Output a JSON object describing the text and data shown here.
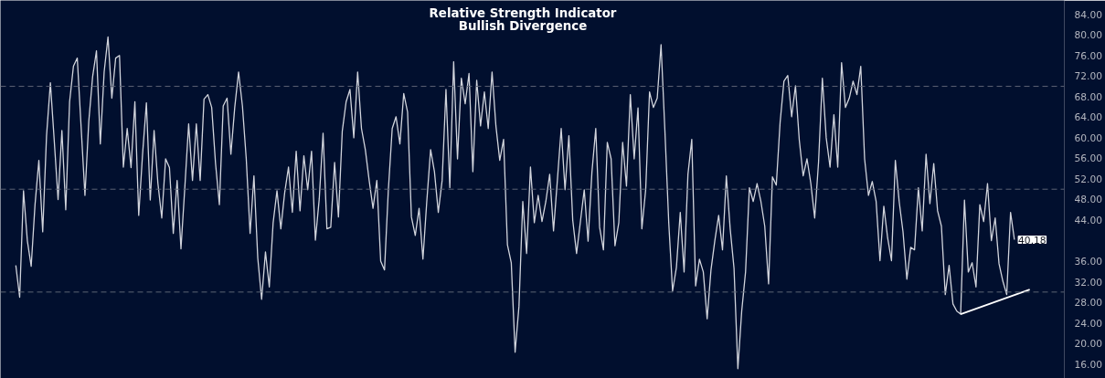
{
  "chart_data": {
    "type": "line",
    "title": "Relative Strength Indicator",
    "subtitle": "Bullish Divergence",
    "categories": [
      null,
      null,
      null,
      null,
      null,
      null,
      null,
      null,
      null,
      null,
      null,
      null,
      null,
      null,
      null,
      null,
      null,
      null,
      null,
      null,
      null,
      null,
      null,
      null,
      null,
      null,
      null,
      null,
      null,
      null,
      null,
      null,
      null,
      null,
      null,
      null,
      null,
      null,
      null,
      null,
      null,
      null,
      null,
      null,
      null,
      null,
      null,
      null,
      null,
      null,
      null,
      null,
      null,
      null,
      null,
      null,
      null,
      null,
      null,
      null,
      null,
      null,
      null,
      null,
      null,
      null,
      null,
      null,
      null,
      null,
      null,
      null,
      null,
      null,
      null,
      null,
      null,
      null,
      null,
      null,
      null,
      null,
      null,
      null,
      null,
      null,
      null,
      null,
      null,
      null,
      null,
      null,
      null,
      null,
      null,
      null,
      null,
      null,
      null,
      null,
      null,
      null,
      null,
      null,
      null,
      null,
      null,
      null,
      null,
      null,
      null,
      null,
      null,
      null,
      null,
      null,
      null,
      null,
      null,
      null,
      null,
      null,
      null,
      null,
      null,
      null,
      null,
      null,
      null,
      null,
      null,
      null,
      null,
      null,
      null,
      null,
      null,
      null,
      null,
      null,
      null,
      null,
      null,
      null,
      null,
      null,
      null,
      null,
      null,
      null,
      null,
      null,
      null,
      null,
      null,
      null,
      null,
      null,
      null,
      null,
      null,
      null,
      null,
      null,
      null,
      null,
      null,
      null,
      null,
      null,
      null,
      null,
      null,
      null,
      null,
      null,
      null,
      null,
      null,
      null,
      null,
      null,
      null,
      null,
      null,
      null,
      null,
      null,
      null,
      null,
      null,
      null,
      null,
      null,
      null,
      null,
      null,
      null,
      null,
      null,
      null,
      null,
      null,
      null,
      null,
      null,
      null,
      null,
      null,
      null,
      null,
      null,
      null,
      null,
      null,
      null,
      null,
      null,
      null,
      null,
      null,
      null,
      null,
      null,
      null,
      null,
      null,
      null,
      null,
      null,
      null,
      null,
      null,
      null,
      null,
      null,
      null,
      null,
      null,
      null,
      null,
      null,
      null,
      null,
      null,
      null,
      null,
      null,
      null,
      null,
      null,
      null,
      null,
      null,
      null,
      null,
      null,
      null,
      null,
      null,
      null,
      null,
      null,
      null,
      null
    ],
    "series": [
      {
        "color": "#d1d4dc",
        "values": [
          35.2,
          29,
          49.7,
          40,
          35,
          47,
          55.6,
          41.7,
          60.4,
          70.7,
          59.5,
          48,
          61.4,
          46,
          67,
          73.9,
          75.5,
          62.1,
          48.8,
          63.2,
          71.9,
          76.9,
          58.8,
          72.8,
          79.6,
          67.7,
          75.5,
          76,
          54.3,
          61.8,
          54.2,
          67,
          44.9,
          56.8,
          66.8,
          47.9,
          61.4,
          51.1,
          44.4,
          55.9,
          54.2,
          41.4,
          51.7,
          38.4,
          50.3,
          62.7,
          51.7,
          62.7,
          51.7,
          67.5,
          68.4,
          65.9,
          55,
          47,
          66.2,
          67.7,
          56.8,
          65.9,
          72.8,
          66.2,
          55.9,
          41.4,
          52.6,
          36.6,
          28.6,
          37.8,
          31,
          43.5,
          49.7,
          42.3,
          49.3,
          54.3,
          45.5,
          57.4,
          45.8,
          56.5,
          49.9,
          57.4,
          40.1,
          48.1,
          60.9,
          42.3,
          42.6,
          55.2,
          44.6,
          61.3,
          67,
          69.4,
          60,
          72.8,
          61.8,
          57.7,
          51.7,
          46.3,
          51.7,
          36,
          34.3,
          49.9,
          61.8,
          64.1,
          58.8,
          68.6,
          65,
          44.6,
          41,
          46.3,
          36.4,
          47.6,
          57.7,
          53.4,
          45.5,
          51.7,
          69.4,
          50.3,
          74.8,
          55.9,
          71.6,
          66.6,
          72.5,
          53.4,
          71.2,
          62.3,
          68.9,
          61.8,
          72.8,
          62.3,
          55.6,
          59.7,
          39.2,
          35.7,
          18.3,
          27.2,
          47.6,
          37.5,
          54.3,
          43.5,
          48.8,
          43.7,
          47.6,
          52.9,
          41.9,
          51.7,
          61.8,
          49.9,
          60.4,
          44,
          37.5,
          43.7,
          49.9,
          39.9,
          53.3,
          61.8,
          42.6,
          38.2,
          59.1,
          55.9,
          39,
          43.5,
          59.1,
          50.6,
          68.4,
          55.9,
          65.8,
          42.3,
          49.9,
          68.9,
          65.9,
          67.7,
          78.1,
          61.4,
          43.5,
          30.2,
          34.8,
          45.5,
          33.9,
          52.9,
          59.7,
          31.2,
          36.4,
          33.9,
          24.8,
          34.3,
          40,
          44.9,
          38.2,
          52.6,
          42.3,
          34.6,
          15.1,
          26.3,
          33.9,
          50.3,
          47.6,
          51.1,
          47.6,
          42.8,
          31.6,
          52.4,
          50.8,
          63,
          71,
          72.1,
          64.1,
          70.1,
          59.5,
          52.6,
          55.9,
          51.1,
          44.4,
          55.2,
          71.6,
          60,
          54.3,
          64.5,
          54.3,
          74.6,
          65.9,
          67.7,
          71,
          68.4,
          73.9,
          55.9,
          48.8,
          51.5,
          47.6,
          36.1,
          46.7,
          40.5,
          36.1,
          55.6,
          47.6,
          41.7,
          32.5,
          38.7,
          38.2,
          50.3,
          41.9,
          56.8,
          47.2,
          55,
          45.8,
          42.8,
          29.5,
          35.2,
          27.7,
          26.3,
          25.7,
          47.9,
          33.9,
          35.7,
          31,
          47,
          43.7,
          51.1,
          40,
          44.4,
          35.5,
          32.1,
          29.5,
          45.5,
          40.18,
          null,
          null,
          null,
          null
        ],
        "value_labels": [
          null,
          null,
          null,
          null,
          null,
          null,
          null,
          null,
          null,
          null,
          null,
          null,
          null,
          null,
          null,
          null,
          null,
          null,
          null,
          null,
          null,
          null,
          null,
          null,
          null,
          null,
          null,
          null,
          null,
          null,
          null,
          null,
          null,
          null,
          null,
          null,
          null,
          null,
          null,
          null,
          null,
          null,
          null,
          null,
          null,
          null,
          null,
          null,
          null,
          null,
          null,
          null,
          null,
          null,
          null,
          null,
          null,
          null,
          null,
          null,
          null,
          null,
          null,
          null,
          null,
          null,
          null,
          null,
          null,
          null,
          null,
          null,
          null,
          null,
          null,
          null,
          null,
          null,
          null,
          null,
          null,
          null,
          null,
          null,
          null,
          null,
          null,
          null,
          null,
          null,
          null,
          null,
          null,
          null,
          null,
          null,
          null,
          null,
          null,
          null,
          null,
          null,
          null,
          null,
          null,
          null,
          null,
          null,
          null,
          null,
          null,
          null,
          null,
          null,
          null,
          null,
          null,
          null,
          null,
          null,
          null,
          null,
          null,
          null,
          null,
          null,
          null,
          null,
          null,
          null,
          null,
          null,
          null,
          null,
          null,
          null,
          null,
          null,
          null,
          null,
          null,
          null,
          null,
          null,
          null,
          null,
          null,
          null,
          null,
          null,
          null,
          null,
          null,
          null,
          null,
          null,
          null,
          null,
          null,
          null,
          null,
          null,
          null,
          null,
          null,
          null,
          null,
          null,
          null,
          null,
          null,
          null,
          null,
          null,
          null,
          null,
          null,
          null,
          null,
          null,
          null,
          null,
          null,
          null,
          null,
          null,
          null,
          null,
          null,
          null,
          null,
          null,
          null,
          null,
          null,
          null,
          null,
          null,
          null,
          null,
          null,
          null,
          null,
          null,
          null,
          null,
          null,
          null,
          null,
          null,
          null,
          null,
          null,
          null,
          null,
          null,
          null,
          null,
          null,
          null,
          null,
          null,
          null,
          null,
          null,
          null,
          null,
          null,
          null,
          null,
          null,
          null,
          null,
          null,
          null,
          null,
          null,
          null,
          null,
          null,
          null,
          null,
          null,
          null,
          null,
          null,
          null,
          null,
          null,
          null,
          null,
          null,
          null,
          null,
          null,
          null,
          null,
          null,
          null,
          null,
          "40.18",
          null,
          null,
          null,
          null
        ]
      },
      {
        "color": "#ffffff",
        "values": [
          null,
          null,
          null,
          null,
          null,
          null,
          null,
          null,
          null,
          null,
          null,
          null,
          null,
          null,
          null,
          null,
          null,
          null,
          null,
          null,
          null,
          null,
          null,
          null,
          null,
          null,
          null,
          null,
          null,
          null,
          null,
          null,
          null,
          null,
          null,
          null,
          null,
          null,
          null,
          null,
          null,
          null,
          null,
          null,
          null,
          null,
          null,
          null,
          null,
          null,
          null,
          null,
          null,
          null,
          null,
          null,
          null,
          null,
          null,
          null,
          null,
          null,
          null,
          null,
          null,
          null,
          null,
          null,
          null,
          null,
          null,
          null,
          null,
          null,
          null,
          null,
          null,
          null,
          null,
          null,
          null,
          null,
          null,
          null,
          null,
          null,
          null,
          null,
          null,
          null,
          null,
          null,
          null,
          null,
          null,
          null,
          null,
          null,
          null,
          null,
          null,
          null,
          null,
          null,
          null,
          null,
          null,
          null,
          null,
          null,
          null,
          null,
          null,
          null,
          null,
          null,
          null,
          null,
          null,
          null,
          null,
          null,
          null,
          null,
          null,
          null,
          null,
          null,
          null,
          null,
          null,
          null,
          null,
          null,
          null,
          null,
          null,
          null,
          null,
          null,
          null,
          null,
          null,
          null,
          null,
          null,
          null,
          null,
          null,
          null,
          null,
          null,
          null,
          null,
          null,
          null,
          null,
          null,
          null,
          null,
          null,
          null,
          null,
          null,
          null,
          null,
          null,
          null,
          null,
          null,
          null,
          null,
          null,
          null,
          null,
          null,
          null,
          null,
          null,
          null,
          null,
          null,
          null,
          null,
          null,
          null,
          null,
          null,
          null,
          null,
          null,
          null,
          null,
          null,
          null,
          null,
          null,
          null,
          null,
          null,
          null,
          null,
          null,
          null,
          null,
          null,
          null,
          null,
          null,
          null,
          null,
          null,
          null,
          null,
          null,
          null,
          null,
          null,
          null,
          null,
          null,
          null,
          null,
          null,
          null,
          null,
          null,
          null,
          null,
          null,
          null,
          null,
          null,
          null,
          null,
          null,
          null,
          null,
          null,
          null,
          null,
          null,
          null,
          null,
          null,
          null,
          25.7,
          null,
          null,
          null,
          null,
          null,
          null,
          null,
          null,
          null,
          null,
          null,
          null,
          null,
          null,
          null,
          null,
          null,
          30.5
        ]
      }
    ],
    "ylim": [
      13.2,
      86.7
    ],
    "yticks": [
      {
        "value": 16,
        "label": "16.00"
      },
      {
        "value": 20,
        "label": "20.00"
      },
      {
        "value": 24,
        "label": "24.00"
      },
      {
        "value": 28,
        "label": "28.00"
      },
      {
        "value": 32,
        "label": "32.00"
      },
      {
        "value": 36,
        "label": "36.00"
      },
      {
        "value": 44,
        "label": "44.00"
      },
      {
        "value": 48,
        "label": "48.00"
      },
      {
        "value": 52,
        "label": "52.00"
      },
      {
        "value": 56,
        "label": "56.00"
      },
      {
        "value": 60,
        "label": "60.00"
      },
      {
        "value": 64,
        "label": "64.00"
      },
      {
        "value": 68,
        "label": "68.00"
      },
      {
        "value": 72,
        "label": "72.00"
      },
      {
        "value": 76,
        "label": "76.00"
      },
      {
        "value": 80,
        "label": "80.00"
      },
      {
        "value": 84,
        "label": "84.00"
      }
    ],
    "tick_labels": "y",
    "grid": false,
    "ref_lines": [
      {
        "axis": "y",
        "value": 70,
        "color": "#5d6475",
        "line_style": "dashed"
      },
      {
        "axis": "y",
        "value": 50,
        "color": "#5d6475",
        "line_style": "dashed"
      },
      {
        "axis": "y",
        "value": 30,
        "color": "#5d6475",
        "line_style": "dashed"
      }
    ]
  }
}
